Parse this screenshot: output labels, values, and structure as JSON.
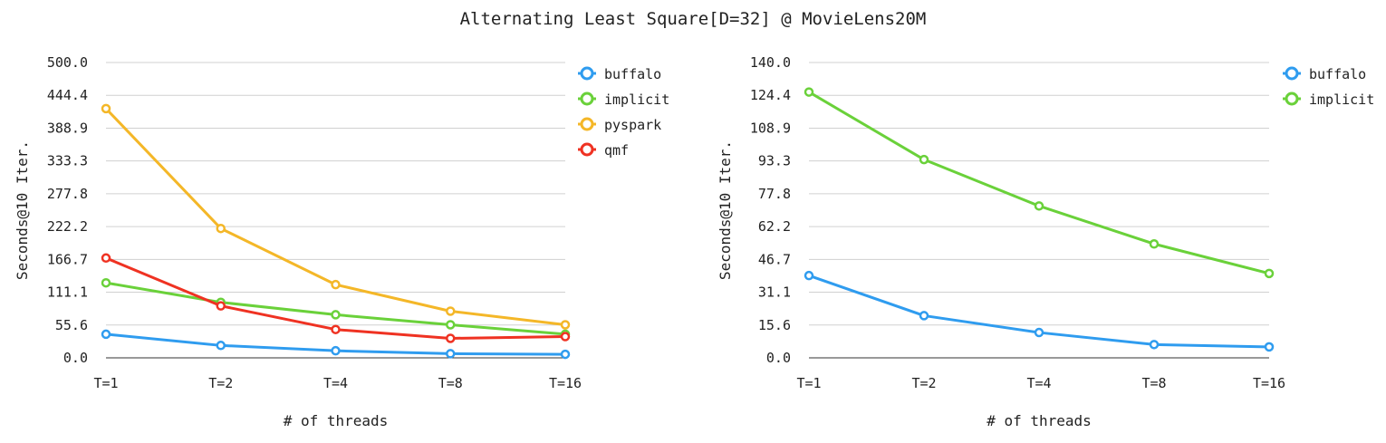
{
  "title": "Alternating Least Square[D=32] @ MovieLens20M",
  "colors": {
    "buffalo": "#2f9cef",
    "implicit": "#6ad13a",
    "pyspark": "#f4b728",
    "qmf": "#ef3222"
  },
  "chart_data": [
    {
      "type": "line",
      "xlabel": "# of threads",
      "ylabel": "Seconds@10 Iter.",
      "categories": [
        "T=1",
        "T=2",
        "T=4",
        "T=8",
        "T=16"
      ],
      "ylim": [
        0,
        500
      ],
      "yticks": [
        "0.0",
        "55.6",
        "111.1",
        "166.7",
        "222.2",
        "277.8",
        "333.3",
        "388.9",
        "444.4",
        "500.0"
      ],
      "grid": true,
      "legend": "top-right",
      "series": [
        {
          "name": "buffalo",
          "values": [
            40,
            21,
            12,
            7,
            6
          ]
        },
        {
          "name": "implicit",
          "values": [
            127,
            94,
            73,
            56,
            40
          ]
        },
        {
          "name": "pyspark",
          "values": [
            422,
            219,
            124,
            79,
            56
          ]
        },
        {
          "name": "qmf",
          "values": [
            169,
            88,
            48,
            33,
            36
          ]
        }
      ]
    },
    {
      "type": "line",
      "xlabel": "# of threads",
      "ylabel": "Seconds@10 Iter.",
      "categories": [
        "T=1",
        "T=2",
        "T=4",
        "T=8",
        "T=16"
      ],
      "ylim": [
        0,
        140
      ],
      "yticks": [
        "0.0",
        "15.6",
        "31.1",
        "46.7",
        "62.2",
        "77.8",
        "93.3",
        "108.9",
        "124.4",
        "140.0"
      ],
      "grid": true,
      "legend": "top-right",
      "series": [
        {
          "name": "buffalo",
          "values": [
            39,
            20,
            12,
            6.3,
            5.2
          ]
        },
        {
          "name": "implicit",
          "values": [
            126,
            94,
            72,
            54,
            40
          ]
        }
      ]
    }
  ]
}
